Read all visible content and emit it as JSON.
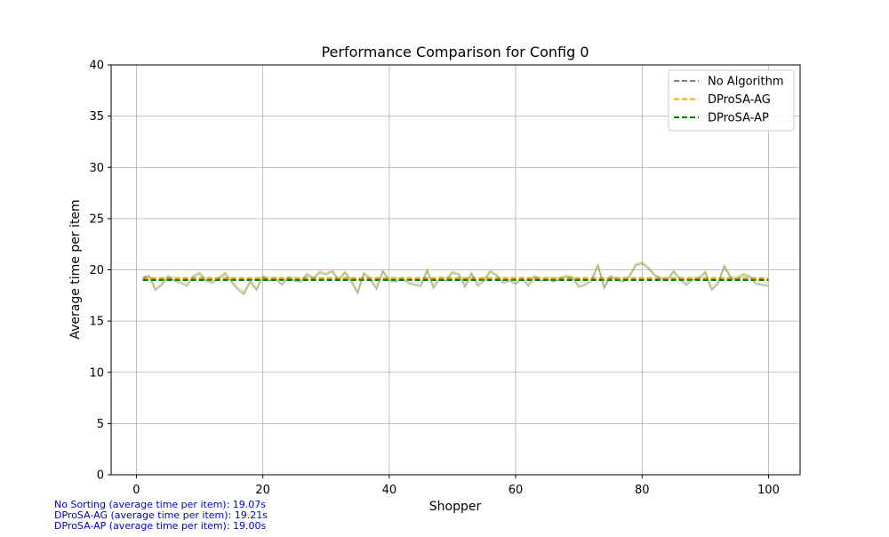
{
  "chart_data": {
    "type": "line",
    "title": "Performance Comparison for Config 0",
    "xlabel": "Shopper",
    "ylabel": "Average time per item",
    "xlim": [
      -4,
      105
    ],
    "ylim": [
      0,
      40
    ],
    "xticks": [
      0,
      20,
      40,
      60,
      80,
      100
    ],
    "yticks": [
      0,
      5,
      10,
      15,
      20,
      25,
      30,
      35,
      40
    ],
    "grid": true,
    "legend_position": "top-right",
    "legend": [
      {
        "label": "No Algorithm",
        "color": "#808080",
        "style": "dashed"
      },
      {
        "label": "DProSA-AG",
        "color": "#ffa500",
        "style": "dashed"
      },
      {
        "label": "DProSA-AP",
        "color": "#008000",
        "style": "dashed"
      }
    ],
    "series": [
      {
        "color": "#808080",
        "style": "dashed",
        "x": [
          1,
          100
        ],
        "y": [
          19.07,
          19.07
        ]
      },
      {
        "color": "#ffa500",
        "style": "dashed",
        "x": [
          1,
          100
        ],
        "y": [
          19.21,
          19.21
        ]
      },
      {
        "color": "#008000",
        "style": "dashed",
        "x": [
          1,
          100
        ],
        "y": [
          19.0,
          19.0
        ]
      },
      {
        "color": "#808080",
        "style": "solid",
        "opacity": 0.3,
        "x": [
          1,
          2,
          3,
          4,
          5,
          6,
          7,
          8,
          9,
          10,
          11,
          12,
          13,
          14,
          15,
          16,
          17,
          18,
          19,
          20,
          21,
          22,
          23,
          24,
          25,
          26,
          27,
          28,
          29,
          30,
          31,
          32,
          33,
          34,
          35,
          36,
          37,
          38,
          39,
          40,
          41,
          42,
          43,
          44,
          45,
          46,
          47,
          48,
          49,
          50,
          51,
          52,
          53,
          54,
          55,
          56,
          57,
          58,
          59,
          60,
          61,
          62,
          63,
          64,
          65,
          66,
          67,
          68,
          69,
          70,
          71,
          72,
          73,
          74,
          75,
          76,
          77,
          78,
          79,
          80,
          81,
          82,
          83,
          84,
          85,
          86,
          87,
          88,
          89,
          90,
          91,
          92,
          93,
          94,
          95,
          96,
          97,
          98,
          99,
          100
        ],
        "y": [
          19.3,
          19.5,
          18.1,
          18.6,
          19.4,
          19.0,
          18.8,
          18.5,
          19.4,
          19.7,
          19.0,
          18.8,
          19.2,
          19.7,
          18.9,
          18.2,
          17.7,
          18.9,
          18.1,
          19.4,
          19.0,
          19.2,
          18.6,
          19.3,
          19.0,
          18.9,
          19.6,
          19.2,
          19.8,
          19.6,
          19.9,
          19.0,
          19.8,
          18.9,
          17.8,
          19.7,
          19.1,
          18.2,
          19.9,
          19.0,
          18.9,
          19.2,
          18.8,
          18.6,
          18.5,
          20.0,
          18.3,
          19.2,
          19.0,
          19.8,
          19.6,
          18.4,
          19.7,
          18.5,
          19.0,
          19.9,
          19.5,
          18.8,
          19.0,
          18.7,
          19.2,
          18.5,
          19.4,
          19.0,
          19.1,
          18.9,
          19.2,
          19.4,
          19.3,
          18.4,
          18.6,
          19.0,
          20.5,
          18.3,
          19.4,
          19.1,
          18.9,
          19.4,
          20.5,
          20.7,
          20.2,
          19.5,
          19.2,
          19.0,
          19.9,
          19.1,
          18.6,
          19.1,
          19.2,
          19.8,
          18.1,
          18.7,
          20.4,
          19.3,
          19.1,
          19.6,
          19.4,
          18.7,
          18.6,
          18.5
        ]
      },
      {
        "color": "#ffa500",
        "style": "solid",
        "opacity": 0.3,
        "x": [
          1,
          2,
          3,
          4,
          5,
          6,
          7,
          8,
          9,
          10,
          11,
          12,
          13,
          14,
          15,
          16,
          17,
          18,
          19,
          20,
          21,
          22,
          23,
          24,
          25,
          26,
          27,
          28,
          29,
          30,
          31,
          32,
          33,
          34,
          35,
          36,
          37,
          38,
          39,
          40,
          41,
          42,
          43,
          44,
          45,
          46,
          47,
          48,
          49,
          50,
          51,
          52,
          53,
          54,
          55,
          56,
          57,
          58,
          59,
          60,
          61,
          62,
          63,
          64,
          65,
          66,
          67,
          68,
          69,
          70,
          71,
          72,
          73,
          74,
          75,
          76,
          77,
          78,
          79,
          80,
          81,
          82,
          83,
          84,
          85,
          86,
          87,
          88,
          89,
          90,
          91,
          92,
          93,
          94,
          95,
          96,
          97,
          98,
          99,
          100
        ],
        "y": [
          19.4,
          19.3,
          18.3,
          18.8,
          19.5,
          19.2,
          19.0,
          18.7,
          19.5,
          19.8,
          19.2,
          18.9,
          19.3,
          19.8,
          19.1,
          18.4,
          17.9,
          19.0,
          18.3,
          19.5,
          19.2,
          19.3,
          18.8,
          19.4,
          19.2,
          19.1,
          19.7,
          19.3,
          19.9,
          19.7,
          20.0,
          19.2,
          19.9,
          19.1,
          18.0,
          19.8,
          19.3,
          18.4,
          20.0,
          19.2,
          19.1,
          19.3,
          19.0,
          18.8,
          18.7,
          20.1,
          18.5,
          19.4,
          19.2,
          19.9,
          19.7,
          18.6,
          19.8,
          18.7,
          19.2,
          20.0,
          19.6,
          19.0,
          19.2,
          18.9,
          19.3,
          18.7,
          19.5,
          19.2,
          19.3,
          19.1,
          19.3,
          19.5,
          19.4,
          18.6,
          18.8,
          19.2,
          20.6,
          18.5,
          19.5,
          19.3,
          19.1,
          19.5,
          20.6,
          20.8,
          20.3,
          19.6,
          19.3,
          19.2,
          20.0,
          19.3,
          18.8,
          19.3,
          19.3,
          19.9,
          18.3,
          18.9,
          20.5,
          19.4,
          19.3,
          19.7,
          19.5,
          18.9,
          18.8,
          18.7
        ]
      },
      {
        "color": "#008000",
        "style": "solid",
        "opacity": 0.3,
        "x": [
          1,
          2,
          3,
          4,
          5,
          6,
          7,
          8,
          9,
          10,
          11,
          12,
          13,
          14,
          15,
          16,
          17,
          18,
          19,
          20,
          21,
          22,
          23,
          24,
          25,
          26,
          27,
          28,
          29,
          30,
          31,
          32,
          33,
          34,
          35,
          36,
          37,
          38,
          39,
          40,
          41,
          42,
          43,
          44,
          45,
          46,
          47,
          48,
          49,
          50,
          51,
          52,
          53,
          54,
          55,
          56,
          57,
          58,
          59,
          60,
          61,
          62,
          63,
          64,
          65,
          66,
          67,
          68,
          69,
          70,
          71,
          72,
          73,
          74,
          75,
          76,
          77,
          78,
          79,
          80,
          81,
          82,
          83,
          84,
          85,
          86,
          87,
          88,
          89,
          90,
          91,
          92,
          93,
          94,
          95,
          96,
          97,
          98,
          99,
          100
        ],
        "y": [
          19.2,
          19.4,
          18.0,
          18.5,
          19.3,
          18.9,
          18.7,
          18.4,
          19.3,
          19.6,
          18.9,
          18.7,
          19.1,
          19.6,
          18.8,
          18.1,
          17.6,
          18.8,
          18.0,
          19.3,
          18.9,
          19.1,
          18.5,
          19.2,
          18.9,
          18.8,
          19.5,
          19.1,
          19.7,
          19.5,
          19.8,
          18.9,
          19.7,
          18.8,
          17.7,
          19.6,
          19.0,
          18.1,
          19.8,
          18.9,
          18.8,
          19.1,
          18.7,
          18.5,
          18.4,
          19.9,
          18.2,
          19.1,
          18.9,
          19.7,
          19.5,
          18.3,
          19.6,
          18.4,
          18.9,
          19.8,
          19.4,
          18.7,
          18.9,
          18.6,
          19.1,
          18.4,
          19.3,
          18.9,
          19.0,
          18.8,
          19.1,
          19.3,
          19.2,
          18.3,
          18.5,
          18.9,
          20.4,
          18.2,
          19.3,
          19.0,
          18.8,
          19.3,
          20.4,
          20.6,
          20.1,
          19.4,
          19.1,
          18.9,
          19.8,
          19.0,
          18.5,
          19.0,
          19.1,
          19.7,
          18.0,
          18.6,
          20.3,
          19.2,
          19.0,
          19.5,
          19.3,
          18.6,
          18.5,
          18.4
        ]
      }
    ]
  },
  "footnotes": [
    "No Sorting (average time per item): 19.07s",
    "DProSA-AG (average time per item): 19.21s",
    "DProSA-AP (average time per item): 19.00s"
  ]
}
